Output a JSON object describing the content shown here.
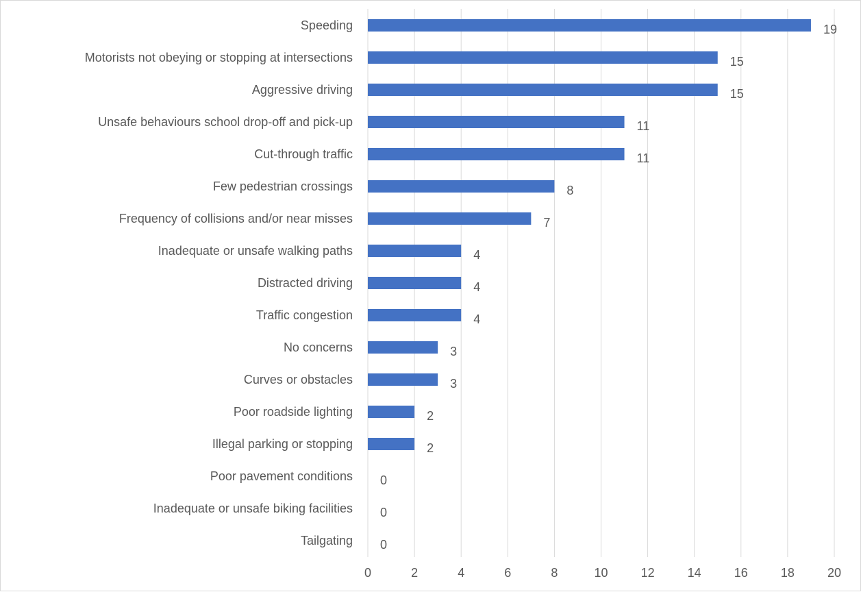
{
  "chart_data": {
    "type": "bar",
    "orientation": "horizontal",
    "categories": [
      "Speeding",
      "Motorists not obeying or stopping at intersections",
      "Aggressive driving",
      "Unsafe behaviours school drop-off and pick-up",
      "Cut-through traffic ",
      "Few pedestrian crossings",
      "Frequency of collisions and/or near misses",
      "Inadequate or unsafe walking paths",
      "Distracted driving",
      "Traffic congestion",
      "No concerns",
      "Curves or obstacles ",
      "Poor roadside lighting",
      "Illegal parking or stopping",
      "Poor pavement conditions",
      "Inadequate or unsafe biking facilities",
      "Tailgating"
    ],
    "values": [
      19,
      15,
      15,
      11,
      11,
      8,
      7,
      4,
      4,
      4,
      3,
      3,
      2,
      2,
      0,
      0,
      0
    ],
    "xlim": [
      0,
      20
    ],
    "x_ticks": [
      0,
      2,
      4,
      6,
      8,
      10,
      12,
      14,
      16,
      18,
      20
    ],
    "title": "",
    "xlabel": "",
    "ylabel": "",
    "grid": "vertical",
    "legend": "none",
    "data_labels": true,
    "colors": {
      "bar": "#4472c4",
      "grid": "#d9d9d9",
      "text": "#595959",
      "border": "#d9d9d9"
    }
  }
}
